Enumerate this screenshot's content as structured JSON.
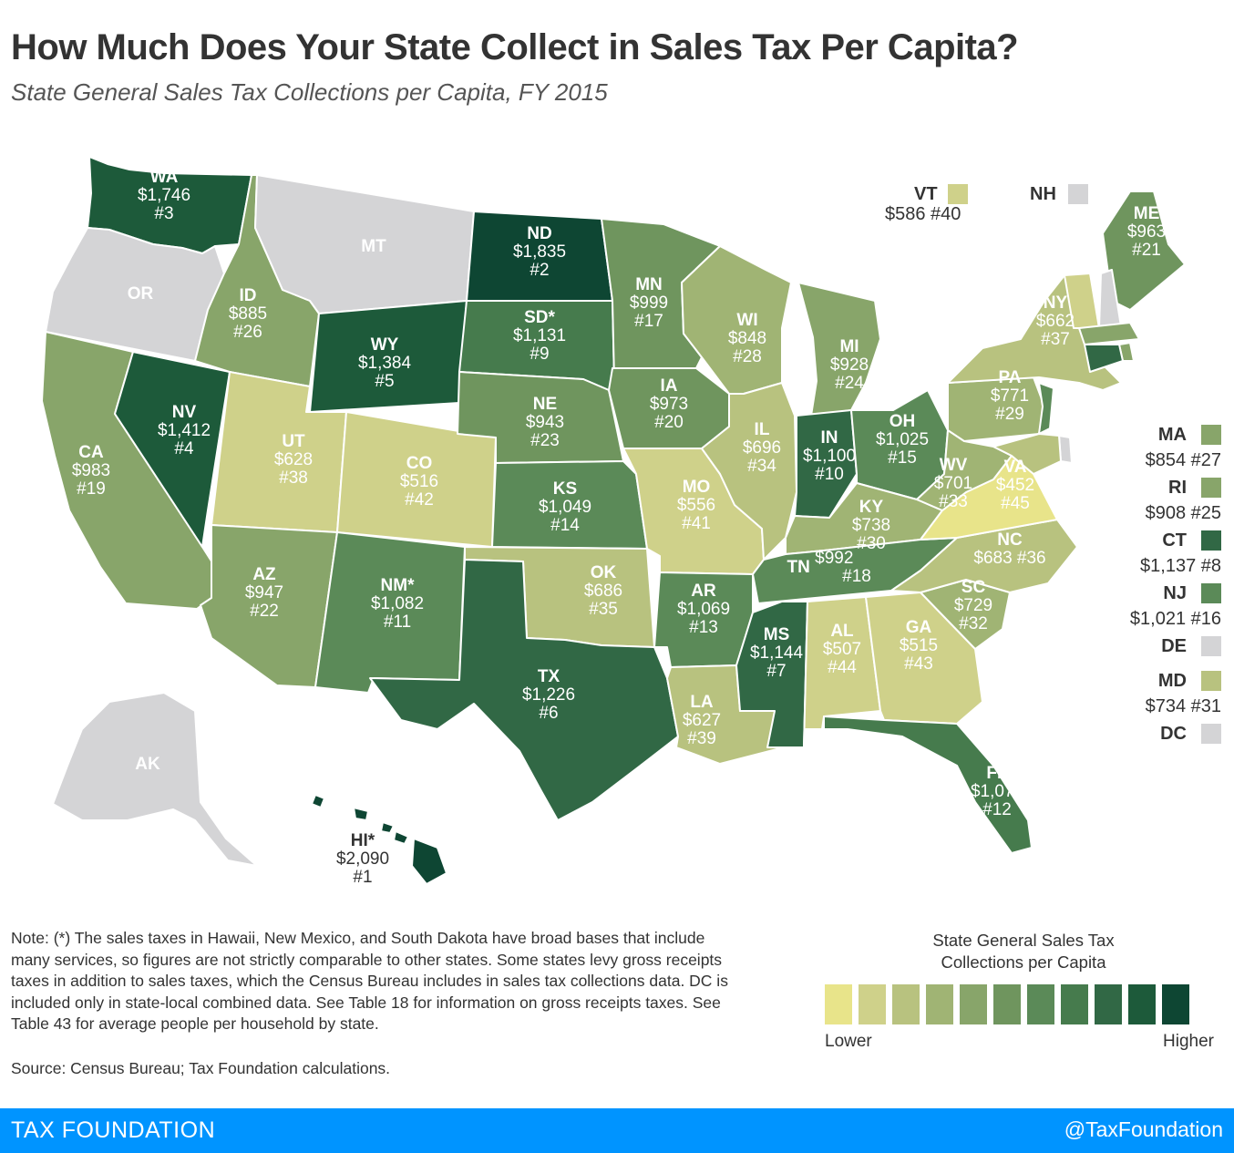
{
  "header": {
    "title": "How Much Does Your State Collect in Sales Tax Per Capita?",
    "subtitle": "State General Sales Tax Collections per Capita, FY 2015"
  },
  "colors": {
    "scale": [
      "#e8e48a",
      "#cfd18a",
      "#b8c27f",
      "#a0b474",
      "#88a56a",
      "#6f955e",
      "#5b8a58",
      "#467b4d",
      "#316845",
      "#1d5a3a",
      "#0e4633"
    ],
    "nodata": "#d4d4d6",
    "footer": "#0094ff"
  },
  "map_data": {
    "states": [
      {
        "id": "WA",
        "value": "$1,746",
        "rank": "#3",
        "shade": 9
      },
      {
        "id": "OR",
        "shade": -1
      },
      {
        "id": "CA",
        "value": "$983",
        "rank": "#19",
        "shade": 4
      },
      {
        "id": "NV",
        "value": "$1,412",
        "rank": "#4",
        "shade": 9
      },
      {
        "id": "ID",
        "value": "$885",
        "rank": "#26",
        "shade": 4
      },
      {
        "id": "MT",
        "shade": -1
      },
      {
        "id": "WY",
        "value": "$1,384",
        "rank": "#5",
        "shade": 9
      },
      {
        "id": "UT",
        "value": "$628",
        "rank": "#38",
        "shade": 1
      },
      {
        "id": "AZ",
        "value": "$947",
        "rank": "#22",
        "shade": 4
      },
      {
        "id": "CO",
        "value": "$516",
        "rank": "#42",
        "shade": 1
      },
      {
        "id": "NM*",
        "value": "$1,082",
        "rank": "#11",
        "shade": 6
      },
      {
        "id": "ND",
        "value": "$1,835",
        "rank": "#2",
        "shade": 10
      },
      {
        "id": "SD*",
        "value": "$1,131",
        "rank": "#9",
        "shade": 7
      },
      {
        "id": "NE",
        "value": "$943",
        "rank": "#23",
        "shade": 5
      },
      {
        "id": "KS",
        "value": "$1,049",
        "rank": "#14",
        "shade": 6
      },
      {
        "id": "OK",
        "value": "$686",
        "rank": "#35",
        "shade": 2
      },
      {
        "id": "TX",
        "value": "$1,226",
        "rank": "#6",
        "shade": 8
      },
      {
        "id": "MN",
        "value": "$999",
        "rank": "#17",
        "shade": 5
      },
      {
        "id": "IA",
        "value": "$973",
        "rank": "#20",
        "shade": 5
      },
      {
        "id": "MO",
        "value": "$556",
        "rank": "#41",
        "shade": 1
      },
      {
        "id": "AR",
        "value": "$1,069",
        "rank": "#13",
        "shade": 6
      },
      {
        "id": "LA",
        "value": "$627",
        "rank": "#39",
        "shade": 2
      },
      {
        "id": "WI",
        "value": "$848",
        "rank": "#28",
        "shade": 3
      },
      {
        "id": "IL",
        "value": "$696",
        "rank": "#34",
        "shade": 2
      },
      {
        "id": "MI",
        "value": "$928",
        "rank": "#24",
        "shade": 4
      },
      {
        "id": "IN",
        "value": "$1,100",
        "rank": "#10",
        "shade": 8
      },
      {
        "id": "OH",
        "value": "$1,025",
        "rank": "#15",
        "shade": 6
      },
      {
        "id": "KY",
        "value": "$738",
        "rank": "#30",
        "shade": 3
      },
      {
        "id": "TN",
        "value": "$992",
        "rank": "#18",
        "shade": 6
      },
      {
        "id": "MS",
        "value": "$1,144",
        "rank": "#7",
        "shade": 8
      },
      {
        "id": "AL",
        "value": "$507",
        "rank": "#44",
        "shade": 1
      },
      {
        "id": "GA",
        "value": "$515",
        "rank": "#43",
        "shade": 1
      },
      {
        "id": "FL",
        "value": "$1,075",
        "rank": "#12",
        "shade": 7
      },
      {
        "id": "SC",
        "value": "$729",
        "rank": "#32",
        "shade": 3
      },
      {
        "id": "NC",
        "value": "$683",
        "rank": "#36",
        "shade": 2
      },
      {
        "id": "VA",
        "value": "$452",
        "rank": "#45",
        "shade": 0
      },
      {
        "id": "WV",
        "value": "$701",
        "rank": "#33",
        "shade": 3
      },
      {
        "id": "PA",
        "value": "$771",
        "rank": "#29",
        "shade": 3
      },
      {
        "id": "NY",
        "value": "$662",
        "rank": "#37",
        "shade": 2
      },
      {
        "id": "ME",
        "value": "$963",
        "rank": "#21",
        "shade": 5
      },
      {
        "id": "AK",
        "shade": -1
      },
      {
        "id": "HI*",
        "value": "$2,090",
        "rank": "#1",
        "shade": 10
      }
    ],
    "top_legend": [
      {
        "id": "VT",
        "value": "$586 #40",
        "shade": 1
      },
      {
        "id": "NH",
        "shade": -1
      }
    ],
    "side_legend": [
      {
        "id": "MA",
        "value": "$854 #27",
        "shade": 4
      },
      {
        "id": "RI",
        "value": "$908 #25",
        "shade": 4
      },
      {
        "id": "CT",
        "value": "$1,137 #8",
        "shade": 8
      },
      {
        "id": "NJ",
        "value": "$1,021 #16",
        "shade": 6
      },
      {
        "id": "DE",
        "shade": -1
      },
      {
        "id": "MD",
        "value": "$734 #31",
        "shade": 2
      },
      {
        "id": "DC",
        "shade": -1
      }
    ]
  },
  "note": "Note: (*) The sales taxes in Hawaii, New Mexico, and South Dakota have broad bases that include many services, so figures are not strictly comparable to other states. Some states levy gross receipts taxes in addition to sales taxes, which the Census Bureau includes in sales tax collections data. DC is included only in state-local combined data. See Table 18 for information on gross receipts taxes. See Table 43 for average people per household by state.",
  "source": "Source: Census Bureau; Tax Foundation calculations.",
  "legend": {
    "title": "State General Sales Tax Collections per Capita",
    "low_label": "Lower",
    "high_label": "Higher"
  },
  "footer": {
    "brand": "TAX FOUNDATION",
    "handle": "@TaxFoundation"
  }
}
